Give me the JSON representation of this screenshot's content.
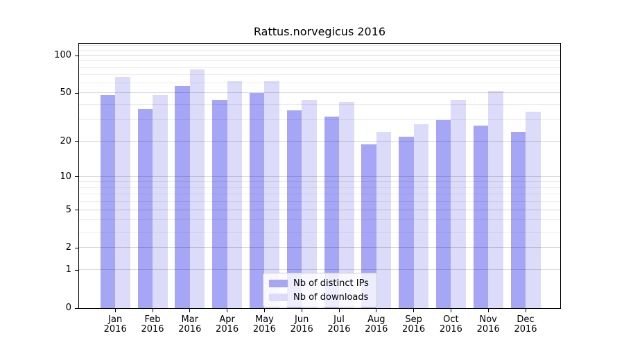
{
  "chart_data": {
    "type": "bar",
    "title": "Rattus.norvegicus 2016",
    "categories": [
      "Jan",
      "Feb",
      "Mar",
      "Apr",
      "May",
      "Jun",
      "Jul",
      "Aug",
      "Sep",
      "Oct",
      "Nov",
      "Dec"
    ],
    "x_tick_year": "2016",
    "series": [
      {
        "name": "Nb of distinct IPs",
        "color": "#a6a6f6",
        "values": [
          48,
          37,
          57,
          44,
          50,
          36,
          32,
          19,
          22,
          30,
          27,
          24
        ]
      },
      {
        "name": "Nb of downloads",
        "color": "#dcdcfa",
        "values": [
          67,
          48,
          78,
          62,
          62,
          44,
          42,
          24,
          28,
          44,
          52,
          35
        ]
      }
    ],
    "ylabel": "",
    "xlabel": "",
    "y_scale": "log1p",
    "ylim": [
      0,
      124.5
    ],
    "y_major_ticks": [
      0,
      1,
      2,
      5,
      10,
      20,
      50,
      100
    ],
    "y_minor_gridlines": [
      3,
      4,
      6,
      7,
      8,
      9,
      30,
      40,
      60,
      70,
      80,
      90,
      110,
      120
    ],
    "grid": true,
    "legend_position": "lower center",
    "axis_color": "#000000",
    "background_color": "#ffffff"
  }
}
